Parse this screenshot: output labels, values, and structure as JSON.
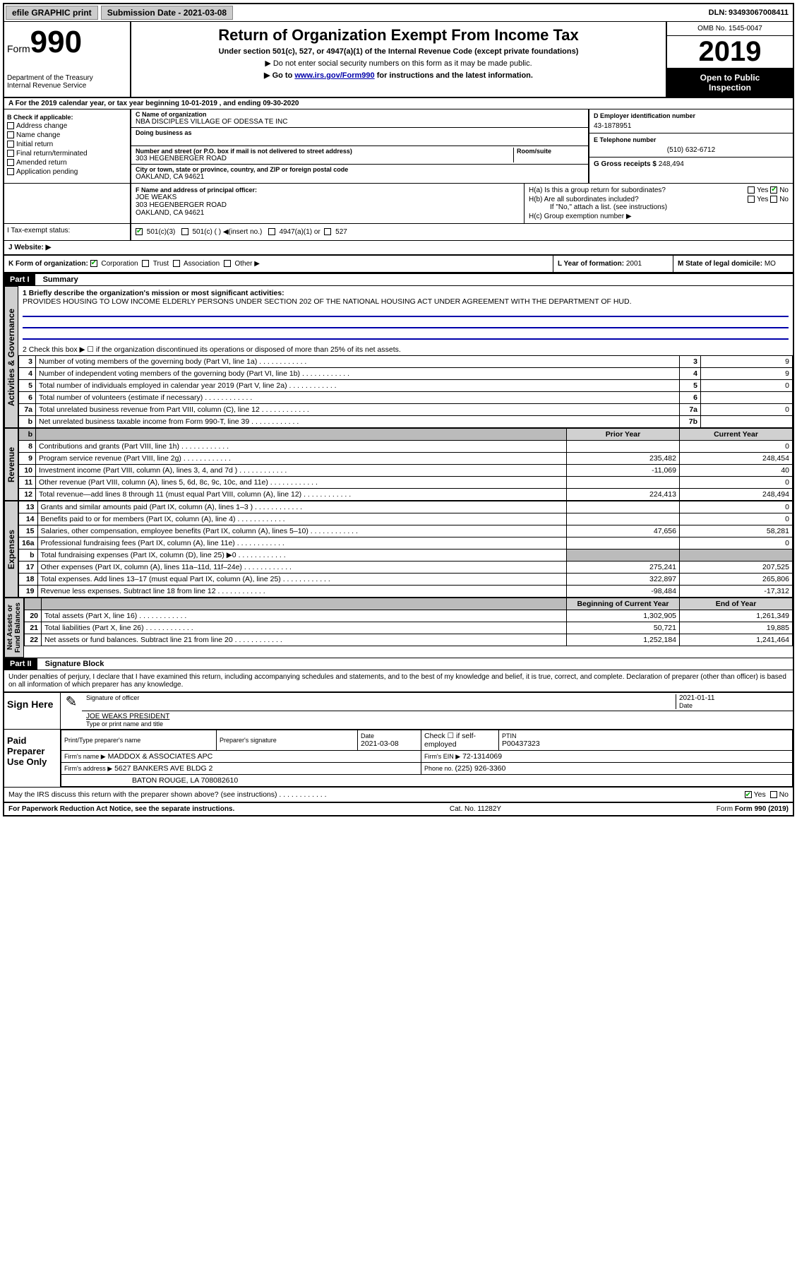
{
  "topbar": {
    "efile": "efile GRAPHIC print",
    "sub_label": "Submission Date - ",
    "sub_date": "2021-03-08",
    "dln_label": "DLN: ",
    "dln": "93493067008411"
  },
  "header": {
    "form_prefix": "Form",
    "form_num": "990",
    "dept": "Department of the Treasury\nInternal Revenue Service",
    "title": "Return of Organization Exempt From Income Tax",
    "sub": "Under section 501(c), 527, or 4947(a)(1) of the Internal Revenue Code (except private foundations)",
    "note1_arrow": "▶",
    "note1": "Do not enter social security numbers on this form as it may be made public.",
    "note2_arrow": "▶",
    "note2_pre": "Go to ",
    "note2_link": "www.irs.gov/Form990",
    "note2_post": " for instructions and the latest information.",
    "omb": "OMB No. 1545-0047",
    "year": "2019",
    "open": "Open to Public\nInspection"
  },
  "line_a": "A For the 2019 calendar year, or tax year beginning 10-01-2019   , and ending 09-30-2020",
  "section_b": {
    "label": "B Check if applicable:",
    "items": [
      "Address change",
      "Name change",
      "Initial return",
      "Final return/terminated",
      "Amended return",
      "Application pending"
    ]
  },
  "section_c": {
    "c_label": "C Name of organization",
    "org_name": "NBA DISCIPLES VILLAGE OF ODESSA TE INC",
    "dba_label": "Doing business as",
    "dba": "",
    "addr_label": "Number and street (or P.O. box if mail is not delivered to street address)",
    "room_label": "Room/suite",
    "addr": "303 HEGENBERGER ROAD",
    "city_label": "City or town, state or province, country, and ZIP or foreign postal code",
    "city": "OAKLAND, CA  94621"
  },
  "section_de": {
    "d_label": "D Employer identification number",
    "ein": "43-1878951",
    "e_label": "E Telephone number",
    "phone": "(510) 632-6712",
    "g_label": "G Gross receipts $ ",
    "g_val": "248,494"
  },
  "section_f": {
    "label": "F  Name and address of principal officer:",
    "name": "JOE WEAKS",
    "addr1": "303 HEGENBERGER ROAD",
    "addr2": "OAKLAND, CA  94621"
  },
  "section_h": {
    "ha_label": "H(a)  Is this a group return for subordinates?",
    "ha_yes": "Yes",
    "ha_no": "No",
    "hb_label": "H(b)  Are all subordinates included?",
    "hb_yes": "Yes",
    "hb_no": "No",
    "hb_note": "If \"No,\" attach a list. (see instructions)",
    "hc_label": "H(c)  Group exemption number ▶"
  },
  "tax_status": {
    "i_label": "I   Tax-exempt status:",
    "opt1": "501(c)(3)",
    "opt2": "501(c) (   ) ◀(insert no.)",
    "opt3": "4947(a)(1) or",
    "opt4": "527"
  },
  "section_j": {
    "label": "J   Website: ▶"
  },
  "section_k": {
    "label": "K Form of organization:",
    "opts": [
      "Corporation",
      "Trust",
      "Association",
      "Other ▶"
    ]
  },
  "section_l": {
    "label": "L Year of formation: ",
    "val": "2001"
  },
  "section_m": {
    "label": "M State of legal domicile: ",
    "val": "MO"
  },
  "part1": {
    "part": "Part I",
    "title": "Summary",
    "line1_label": "1  Briefly describe the organization's mission or most significant activities:",
    "mission": "PROVIDES HOUSING TO LOW INCOME ELDERLY PERSONS UNDER SECTION 202 OF THE NATIONAL HOUSING ACT UNDER AGREEMENT WITH THE DEPARTMENT OF HUD.",
    "line2": "2   Check this box ▶ ☐  if the organization discontinued its operations or disposed of more than 25% of its net assets.",
    "rows_ag": [
      {
        "n": "3",
        "d": "Number of voting members of the governing body (Part VI, line 1a)",
        "box": "3",
        "v": "9"
      },
      {
        "n": "4",
        "d": "Number of independent voting members of the governing body (Part VI, line 1b)",
        "box": "4",
        "v": "9"
      },
      {
        "n": "5",
        "d": "Total number of individuals employed in calendar year 2019 (Part V, line 2a)",
        "box": "5",
        "v": "0"
      },
      {
        "n": "6",
        "d": "Total number of volunteers (estimate if necessary)",
        "box": "6",
        "v": ""
      },
      {
        "n": "7a",
        "d": "Total unrelated business revenue from Part VIII, column (C), line 12",
        "box": "7a",
        "v": "0"
      },
      {
        "n": "b",
        "d": "Net unrelated business taxable income from Form 990-T, line 39",
        "box": "7b",
        "v": ""
      }
    ],
    "prior_hdr": "Prior Year",
    "curr_hdr": "Current Year",
    "rows_rev": [
      {
        "n": "8",
        "d": "Contributions and grants (Part VIII, line 1h)",
        "p": "",
        "c": "0"
      },
      {
        "n": "9",
        "d": "Program service revenue (Part VIII, line 2g)",
        "p": "235,482",
        "c": "248,454"
      },
      {
        "n": "10",
        "d": "Investment income (Part VIII, column (A), lines 3, 4, and 7d )",
        "p": "-11,069",
        "c": "40"
      },
      {
        "n": "11",
        "d": "Other revenue (Part VIII, column (A), lines 5, 6d, 8c, 9c, 10c, and 11e)",
        "p": "",
        "c": "0"
      },
      {
        "n": "12",
        "d": "Total revenue—add lines 8 through 11 (must equal Part VIII, column (A), line 12)",
        "p": "224,413",
        "c": "248,494"
      }
    ],
    "rows_exp": [
      {
        "n": "13",
        "d": "Grants and similar amounts paid (Part IX, column (A), lines 1–3 )",
        "p": "",
        "c": "0"
      },
      {
        "n": "14",
        "d": "Benefits paid to or for members (Part IX, column (A), line 4)",
        "p": "",
        "c": "0"
      },
      {
        "n": "15",
        "d": "Salaries, other compensation, employee benefits (Part IX, column (A), lines 5–10)",
        "p": "47,656",
        "c": "58,281"
      },
      {
        "n": "16a",
        "d": "Professional fundraising fees (Part IX, column (A), line 11e)",
        "p": "",
        "c": "0"
      },
      {
        "n": "b",
        "d": "Total fundraising expenses (Part IX, column (D), line 25) ▶0",
        "p": "__GRAY__",
        "c": "__GRAY__"
      },
      {
        "n": "17",
        "d": "Other expenses (Part IX, column (A), lines 11a–11d, 11f–24e)",
        "p": "275,241",
        "c": "207,525"
      },
      {
        "n": "18",
        "d": "Total expenses. Add lines 13–17 (must equal Part IX, column (A), line 25)",
        "p": "322,897",
        "c": "265,806"
      },
      {
        "n": "19",
        "d": "Revenue less expenses. Subtract line 18 from line 12",
        "p": "-98,484",
        "c": "-17,312"
      }
    ],
    "begin_hdr": "Beginning of Current Year",
    "end_hdr": "End of Year",
    "rows_na": [
      {
        "n": "20",
        "d": "Total assets (Part X, line 16)",
        "p": "1,302,905",
        "c": "1,261,349"
      },
      {
        "n": "21",
        "d": "Total liabilities (Part X, line 26)",
        "p": "50,721",
        "c": "19,885"
      },
      {
        "n": "22",
        "d": "Net assets or fund balances. Subtract line 21 from line 20",
        "p": "1,252,184",
        "c": "1,241,464"
      }
    ],
    "vtabs": {
      "ag": "Activities & Governance",
      "rev": "Revenue",
      "exp": "Expenses",
      "na": "Net Assets or\nFund Balances"
    }
  },
  "part2": {
    "part": "Part II",
    "title": "Signature Block",
    "decl": "Under penalties of perjury, I declare that I have examined this return, including accompanying schedules and statements, and to the best of my knowledge and belief, it is true, correct, and complete. Declaration of preparer (other than officer) is based on all information of which preparer has any knowledge.",
    "sign_here": "Sign Here",
    "sig_officer": "Signature of officer",
    "sig_date_label": "Date",
    "sig_date": "2021-01-11",
    "officer_name": "JOE WEAKS  PRESIDENT",
    "officer_sub": "Type or print name and title",
    "paid": "Paid Preparer Use Only",
    "prep_name_label": "Print/Type preparer's name",
    "prep_sig_label": "Preparer's signature",
    "date_label": "Date",
    "prep_date": "2021-03-08",
    "check_label": "Check ☐ if self-employed",
    "ptin_label": "PTIN",
    "ptin": "P00437323",
    "firm_name_label": "Firm's name    ▶",
    "firm_name": "MADDOX & ASSOCIATES APC",
    "firm_ein_label": "Firm's EIN ▶",
    "firm_ein": "72-1314069",
    "firm_addr_label": "Firm's address ▶",
    "firm_addr1": "5627 BANKERS AVE BLDG 2",
    "firm_addr2": "BATON ROUGE, LA  708082610",
    "phone_label": "Phone no. ",
    "phone": "(225) 926-3360",
    "discuss": "May the IRS discuss this return with the preparer shown above? (see instructions)",
    "discuss_yes": "Yes",
    "discuss_no": "No"
  },
  "footer": {
    "left": "For Paperwork Reduction Act Notice, see the separate instructions.",
    "mid": "Cat. No. 11282Y",
    "right": "Form 990 (2019)"
  },
  "colors": {
    "link": "#0033cc",
    "header_gray": "#d0d0d0",
    "check_green": "#00a000"
  }
}
